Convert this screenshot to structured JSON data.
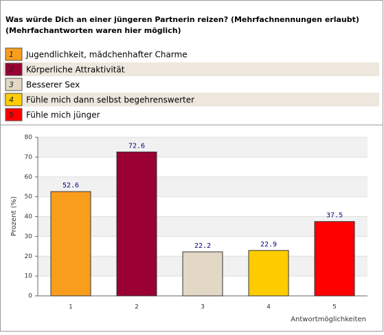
{
  "chart_data": {
    "type": "bar",
    "title": "Was würde Dich an einer jüngeren Partnerin reizen? (Mehrfachnennungen erlaubt)",
    "subtitle": "(Mehrfachantworten waren hier möglich)",
    "categories": [
      "1",
      "2",
      "3",
      "4",
      "5"
    ],
    "legend_labels": [
      "Jugendlichkeit, mädchenhafter Charme",
      "Körperliche Attraktivität",
      "Besserer Sex",
      "Fühle mich dann selbst begehrenswerter",
      "Fühle mich jünger"
    ],
    "values": [
      52.6,
      72.6,
      22.2,
      22.9,
      37.5
    ],
    "colors": [
      "#f99d1c",
      "#9b0034",
      "#e2d8c5",
      "#ffcc00",
      "#ff0000"
    ],
    "ylabel": "Prozent (%)",
    "xlabel": "Antwortmöglichkeiten",
    "ylim": [
      0,
      80
    ],
    "yticks": [
      0,
      10,
      20,
      30,
      40,
      50,
      60,
      70,
      80
    ],
    "grid": true
  }
}
